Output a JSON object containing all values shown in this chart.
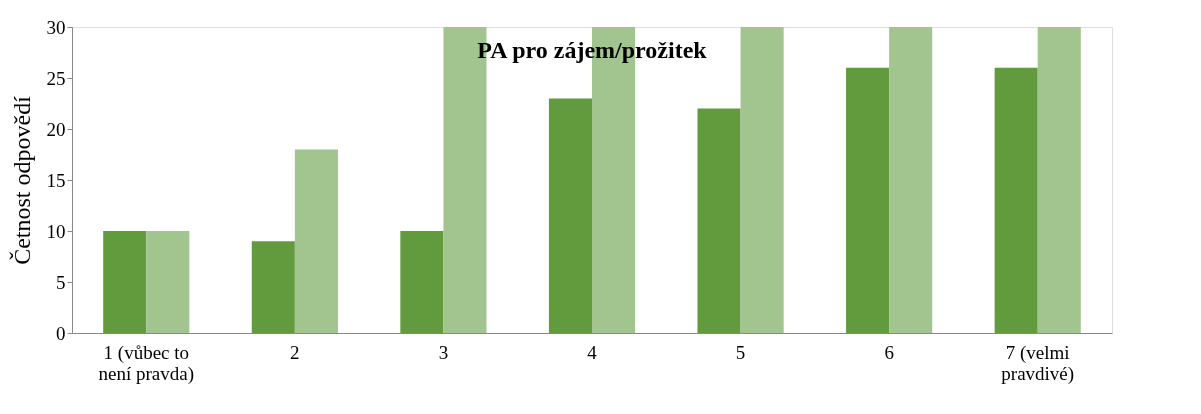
{
  "chart_data": {
    "type": "bar",
    "title": "PA pro zájem/prožitek",
    "ylabel": "Četnost odpovědí",
    "categories": [
      "1 (vůbec to není pravda)",
      "2",
      "3",
      "4",
      "5",
      "6",
      "7 (velmi pravdivé)"
    ],
    "series": [
      {
        "color": "#629a3e",
        "values": [
          10,
          9,
          10,
          23,
          22,
          26,
          26
        ]
      },
      {
        "color": "#a2c48f",
        "values": [
          10,
          18,
          30,
          30,
          30,
          30,
          30
        ]
      }
    ],
    "ylim": [
      0,
      30
    ],
    "yticks": [
      0,
      5,
      10,
      15,
      20,
      25,
      30
    ],
    "grid": false,
    "legend": false
  }
}
